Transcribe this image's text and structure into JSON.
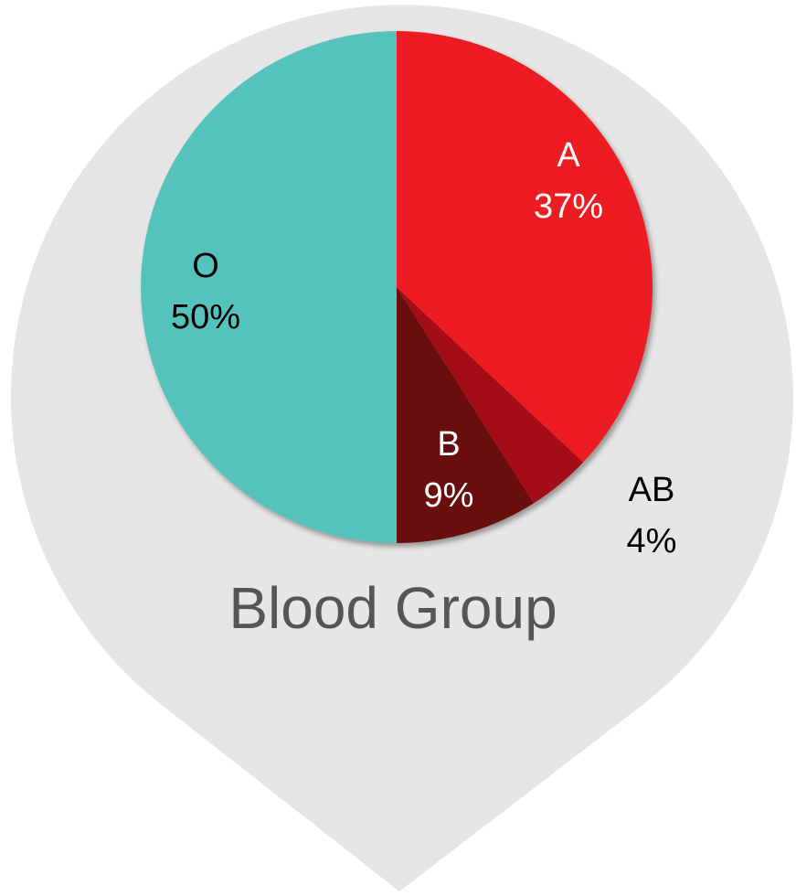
{
  "chart_data": {
    "type": "pie",
    "title": "Blood Group",
    "categories": [
      "A",
      "AB",
      "B",
      "O"
    ],
    "values": [
      37,
      4,
      9,
      50
    ],
    "value_labels": [
      "37%",
      "4%",
      "9%",
      "50%"
    ],
    "colors": [
      "#ed1c24",
      "#a50f15",
      "#6b0a0a",
      "#54c3bc"
    ]
  }
}
